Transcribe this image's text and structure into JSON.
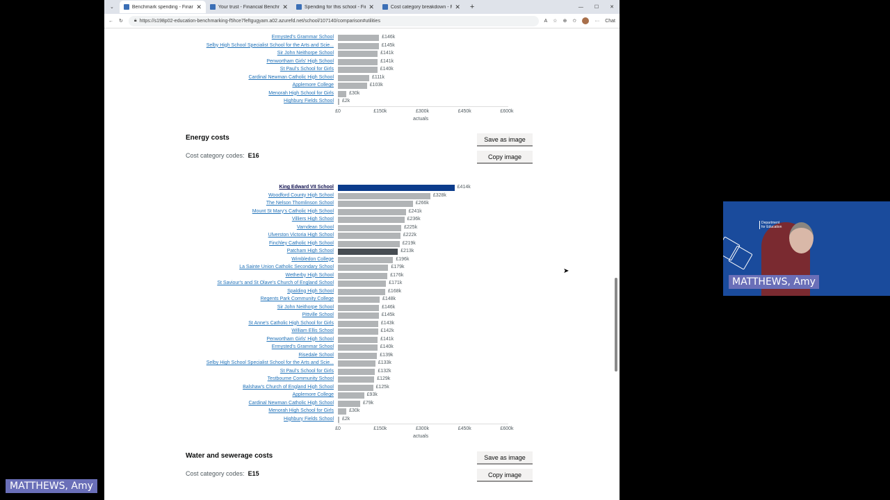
{
  "browser": {
    "tabs": [
      {
        "label": "Benchmark spending - Financial B",
        "active": true
      },
      {
        "label": "Your trust - Financial Benchmarkin",
        "active": false
      },
      {
        "label": "Spending for this school - Financ",
        "active": false
      },
      {
        "label": "Cost category breakdown - Financ",
        "active": false
      }
    ],
    "url": "https://s198p02-education-benchmarking-f5hce7feftgugyam.a02.azurefd.net/school/107140/comparison#utilities",
    "chat_label": "Chat"
  },
  "sections": {
    "energy": {
      "title": "Energy costs",
      "codes_label": "Cost category codes:",
      "codes": "E16"
    },
    "water": {
      "title": "Water and sewerage costs",
      "codes_label": "Cost category codes:",
      "codes": "E15"
    },
    "save_label": "Save as image",
    "copy_label": "Copy image"
  },
  "chart_data": [
    {
      "type": "bar",
      "orientation": "horizontal",
      "xlabel": "actuals",
      "xlim": [
        0,
        600
      ],
      "unit": "£k",
      "ticks": [
        "£0",
        "£150k",
        "£300k",
        "£450k",
        "£600k"
      ],
      "tick_values": [
        0,
        150,
        300,
        450,
        600
      ],
      "categories": [
        "Ermysted's Grammar School",
        "Selby High School Specialist School for the Arts and Scie...",
        "Sir John Neithorpe School",
        "Penwortham Girls' High School",
        "St Paul's School for Girls",
        "Cardinal Newman Catholic High School",
        "Applemore College",
        "Menorah High School for Girls",
        "Highbury Fields School"
      ],
      "values": [
        146,
        145,
        141,
        141,
        140,
        111,
        103,
        30,
        2
      ],
      "labels": [
        "£146k",
        "£145k",
        "£141k",
        "£141k",
        "£140k",
        "£111k",
        "£103k",
        "£30k",
        "£2k"
      ]
    },
    {
      "type": "bar",
      "orientation": "horizontal",
      "xlabel": "actuals",
      "xlim": [
        0,
        600
      ],
      "unit": "£k",
      "ticks": [
        "£0",
        "£150k",
        "£300k",
        "£450k",
        "£600k"
      ],
      "tick_values": [
        0,
        150,
        300,
        450,
        600
      ],
      "highlight": {
        "King Edward VII School": "#0b3c8c",
        "Patcham High School": "#464c52"
      },
      "default_color": "#b1b4b6",
      "categories": [
        "King Edward VII School",
        "Woodford County High School",
        "The Nelson Thomlinson School",
        "Mount St Mary's Catholic High School",
        "Villiers High School",
        "Varndean School",
        "Ulverston Victoria High School",
        "Finchley Catholic High School",
        "Patcham High School",
        "Wimbledon College",
        "La Sainte Union Catholic Secondary School",
        "Wetherby High School",
        "St Saviour's and St Olave's Church of England School",
        "Spalding High School",
        "Regents Park Community College",
        "Sir John Neithorpe School",
        "Pittville School",
        "St Anne's Catholic High School for Girls",
        "William Ellis School",
        "Penwortham Girls' High School",
        "Ermysted's Grammar School",
        "Risedale School",
        "Selby High School Specialist School for the Arts and Scie...",
        "St Paul's School for Girls",
        "Testbourne Community School",
        "Balshaw's Church of England High School",
        "Applemore College",
        "Cardinal Newman Catholic High School",
        "Menorah High School for Girls",
        "Highbury Fields School"
      ],
      "values": [
        414,
        328,
        266,
        241,
        236,
        225,
        222,
        219,
        213,
        196,
        179,
        176,
        171,
        168,
        148,
        146,
        145,
        143,
        142,
        141,
        140,
        139,
        133,
        132,
        129,
        125,
        93,
        79,
        30,
        2
      ],
      "labels": [
        "£414k",
        "£328k",
        "£266k",
        "£241k",
        "£236k",
        "£225k",
        "£222k",
        "£219k",
        "£213k",
        "£196k",
        "£179k",
        "£176k",
        "£171k",
        "£168k",
        "£148k",
        "£146k",
        "£145k",
        "£143k",
        "£142k",
        "£141k",
        "£140k",
        "£139k",
        "£133k",
        "£132k",
        "£129k",
        "£125k",
        "£93k",
        "£79k",
        "£30k",
        "£2k"
      ]
    }
  ],
  "video": {
    "participant": "MATTHEWS, Amy",
    "logo_text": "Department for Education",
    "self_label": "MATTHEWS, Amy"
  }
}
